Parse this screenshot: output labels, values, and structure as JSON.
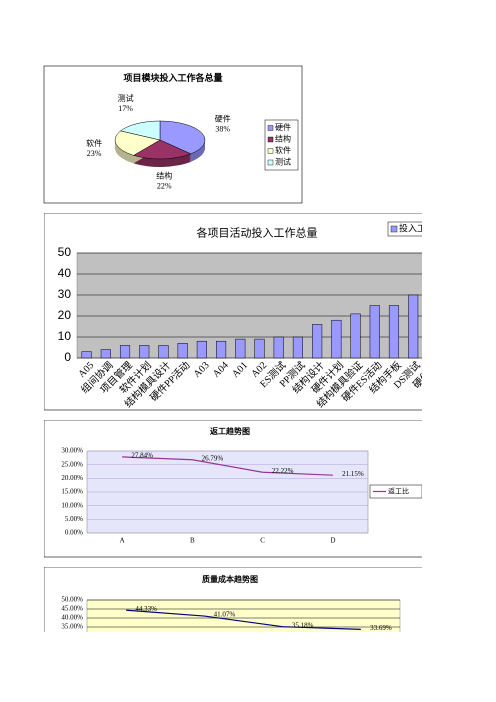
{
  "chart_data": [
    {
      "type": "pie",
      "title": "项目模块投入工作各总量",
      "categories": [
        "硬件",
        "结构",
        "软件",
        "测试"
      ],
      "values": [
        38,
        22,
        23,
        17
      ],
      "value_labels": [
        "38%",
        "22%",
        "23%",
        "17%"
      ],
      "colors": [
        "#9999ff",
        "#993366",
        "#ffffcc",
        "#ccffff"
      ],
      "legend": "right"
    },
    {
      "type": "bar",
      "title": "各项目活动投入工作总量",
      "categories": [
        "A05",
        "组间协调",
        "项目管理",
        "软件计划",
        "结构模具设计",
        "硬件PP活动",
        "A03",
        "A04",
        "A01",
        "A02",
        "ES测试",
        "PP测试",
        "结构设计",
        "硬件计划",
        "结构模具验证",
        "硬件ES活动",
        "结构手板",
        "DS测试",
        "硬件DS"
      ],
      "series": [
        {
          "name": "投入工",
          "color": "#9999ff",
          "values": [
            3,
            4,
            6,
            6,
            6,
            7,
            8,
            8,
            9,
            9,
            10,
            10,
            16,
            18,
            21,
            25,
            25,
            30,
            null
          ]
        }
      ],
      "ylim": [
        0,
        50
      ],
      "yticks": [
        0,
        10,
        20,
        30,
        40,
        50
      ],
      "grid": true,
      "legend": "top-right"
    },
    {
      "type": "line",
      "title": "返工趋势图",
      "categories": [
        "A",
        "B",
        "C",
        "D"
      ],
      "series": [
        {
          "name": "返工比",
          "color": "#993399",
          "values": [
            27.84,
            26.79,
            22.22,
            21.15
          ],
          "value_labels": [
            "27.84%",
            "26.79%",
            "22.22%",
            "21.15%"
          ]
        }
      ],
      "ylim": [
        0,
        30
      ],
      "yticks": [
        {
          "value": 0,
          "label": "0.00%"
        },
        {
          "value": 5,
          "label": "5.00%"
        },
        {
          "value": 10,
          "label": "10.00%"
        },
        {
          "value": 15,
          "label": "15.00%"
        },
        {
          "value": 20,
          "label": "20.00%"
        },
        {
          "value": 25,
          "label": "25.00%"
        },
        {
          "value": 30,
          "label": "30.00%"
        }
      ],
      "grid": true,
      "legend": "right"
    },
    {
      "type": "line",
      "title": "质量成本趋势图",
      "series": [
        {
          "color": "#000080",
          "values": [
            44.33,
            41.07,
            35.18,
            33.69
          ],
          "value_labels": [
            "44.33%",
            "41.07%",
            "35.18%",
            "33.69%"
          ]
        }
      ],
      "ylim": [
        0,
        50
      ],
      "yticks": [
        {
          "value": 35,
          "label": "35.00%"
        },
        {
          "value": 40,
          "label": "40.00%"
        },
        {
          "value": 45,
          "label": "45.00%"
        },
        {
          "value": 50,
          "label": "50.00%"
        }
      ],
      "grid": true
    }
  ]
}
